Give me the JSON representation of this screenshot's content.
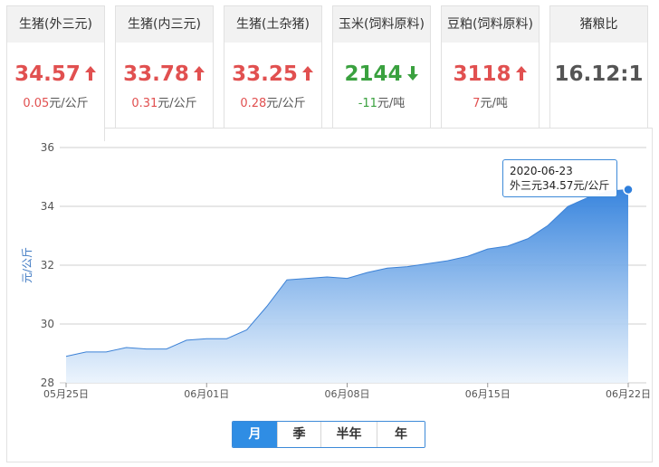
{
  "cards": [
    {
      "title": "生猪(外三元)",
      "price": "34.57",
      "trend": "up",
      "change_num": "0.05",
      "change_unit": "元/公斤"
    },
    {
      "title": "生猪(内三元)",
      "price": "33.78",
      "trend": "up",
      "change_num": "0.31",
      "change_unit": "元/公斤"
    },
    {
      "title": "生猪(土杂猪)",
      "price": "33.25",
      "trend": "up",
      "change_num": "0.28",
      "change_unit": "元/公斤"
    },
    {
      "title": "玉米(饲料原料)",
      "price": "2144",
      "trend": "down",
      "change_num": "-11",
      "change_unit": "元/吨"
    },
    {
      "title": "豆粕(饲料原料)",
      "price": "3118",
      "trend": "up",
      "change_num": "7",
      "change_unit": "元/吨"
    },
    {
      "title": "猪粮比",
      "price": "16.12:1",
      "trend": "flat",
      "change_num": "",
      "change_unit": ""
    }
  ],
  "colors": {
    "up": "#e15050",
    "down": "#3aa13f",
    "accent": "#2f8de4",
    "area_top": "#2f7fdc",
    "area_bottom": "#eaf3fc"
  },
  "tooltip": {
    "date": "2020-06-23",
    "text": "外三元34.57元/公斤"
  },
  "range_buttons": [
    {
      "label": "月",
      "active": true
    },
    {
      "label": "季",
      "active": false
    },
    {
      "label": "半年",
      "active": false
    },
    {
      "label": "年",
      "active": false
    }
  ],
  "chart_data": {
    "type": "area",
    "ylabel": "元/公斤",
    "ylim": [
      28,
      36
    ],
    "yticks": [
      28,
      30,
      32,
      34,
      36
    ],
    "x_tick_labels": [
      "05月25日",
      "06月01日",
      "06月08日",
      "06月15日",
      "06月22日"
    ],
    "x_tick_index": [
      0,
      7,
      14,
      21,
      28
    ],
    "grid": true,
    "series": [
      {
        "values": [
          28.9,
          29.05,
          29.05,
          29.2,
          29.15,
          29.15,
          29.45,
          29.5,
          29.5,
          29.8,
          30.6,
          31.5,
          31.55,
          31.6,
          31.55,
          31.75,
          31.9,
          31.95,
          32.05,
          32.15,
          32.3,
          32.55,
          32.65,
          32.9,
          33.35,
          34.0,
          34.3,
          34.52,
          34.57
        ]
      }
    ],
    "highlight_index": 28
  }
}
